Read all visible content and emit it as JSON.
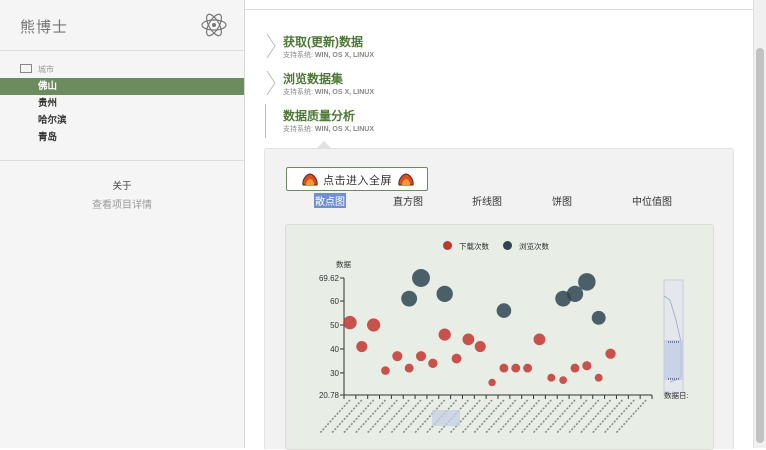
{
  "sidebar": {
    "brand": "熊博士",
    "city_heading": "城市",
    "cities": [
      "佛山",
      "贵州",
      "哈尔滨",
      "青岛"
    ],
    "active_city": "佛山",
    "about": "关于",
    "project_detail": "查看项目详情"
  },
  "sections": [
    {
      "title": "获取(更新)数据",
      "support_label": "支持系统:",
      "systems": "WIN, OS X, LINUX"
    },
    {
      "title": "浏览数据集",
      "support_label": "支持系统:",
      "systems": "WIN, OS X, LINUX"
    },
    {
      "title": "数据质量分析",
      "support_label": "支持系统:",
      "systems": "WIN, OS X, LINUX"
    }
  ],
  "fullscreen_button": "点击进入全屏",
  "tabs": [
    "散点图",
    "直方图",
    "折线图",
    "饼图",
    "中位值图"
  ],
  "active_tab": "散点图",
  "colors": {
    "accent": "#6c8c5f",
    "download": "#c23531",
    "browse": "#2f4554",
    "title": "#4e7a38"
  },
  "chart_data": {
    "type": "scatter",
    "legend": [
      "下载次数",
      "浏览次数"
    ],
    "legend_position": "top-center",
    "ylabel": "数据",
    "ylim": [
      20.78,
      69.62
    ],
    "yticks": [
      20.78,
      30,
      40,
      50,
      60,
      69.62
    ],
    "datazoom_label": "数据日:",
    "category_count": 26,
    "series": [
      {
        "name": "下载次数",
        "color": "#c23531",
        "values": [
          51,
          41,
          50,
          31,
          37,
          32,
          37,
          34,
          46,
          36,
          44,
          41,
          26,
          32,
          32,
          32,
          44,
          28,
          27,
          32,
          33,
          28,
          38
        ]
      },
      {
        "name": "浏览次数",
        "color": "#2f4554",
        "points": [
          [
            5,
            61
          ],
          [
            6,
            69.62
          ],
          [
            8,
            63
          ],
          [
            13,
            56
          ],
          [
            18,
            61
          ],
          [
            19,
            63
          ],
          [
            20,
            68
          ],
          [
            21,
            53
          ]
        ]
      }
    ]
  }
}
